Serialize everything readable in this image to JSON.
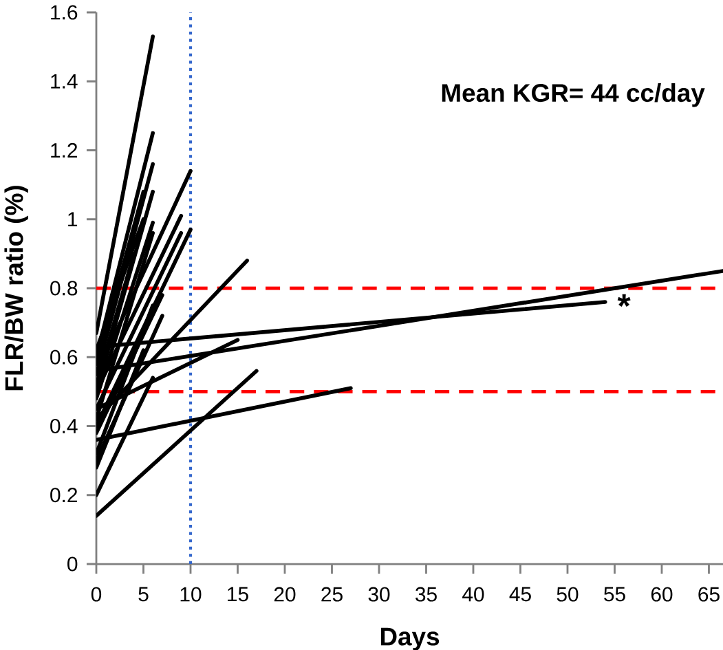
{
  "chart_data": {
    "type": "line",
    "xlabel": "Days",
    "ylabel": "FLR/BW ratio (%)",
    "xlim": [
      0,
      66.5
    ],
    "xticks": [
      0,
      5,
      10,
      15,
      20,
      25,
      30,
      35,
      40,
      45,
      50,
      55,
      60,
      65
    ],
    "ylim": [
      0,
      1.6
    ],
    "yticks": [
      0,
      0.2,
      0.4,
      0.6,
      0.8,
      1,
      1.2,
      1.4,
      1.6
    ],
    "marker": "none",
    "line_style": "solid",
    "grid": false,
    "ref_lines": [
      {
        "axis": "y",
        "value": 0.8,
        "color": "#ff0000",
        "line_style": "dashed"
      },
      {
        "axis": "y",
        "value": 0.5,
        "color": "#ff0000",
        "line_style": "dashed"
      },
      {
        "axis": "x",
        "value": 10,
        "color": "#3366cc",
        "line_style": "dotted"
      }
    ],
    "annotations": [
      "Mean KGR= 44 cc/day",
      "*"
    ],
    "series": [
      {
        "x": [
          0,
          54
        ],
        "values": [
          0.63,
          0.76
        ],
        "color": "#000000"
      },
      {
        "x": [
          0,
          66.5
        ],
        "values": [
          0.56,
          0.85
        ],
        "color": "#000000"
      },
      {
        "x": [
          0,
          27
        ],
        "values": [
          0.36,
          0.51
        ],
        "color": "#000000"
      },
      {
        "x": [
          0,
          17
        ],
        "values": [
          0.14,
          0.56
        ],
        "color": "#000000"
      },
      {
        "x": [
          0,
          6
        ],
        "values": [
          0.2,
          0.54
        ],
        "color": "#000000"
      },
      {
        "x": [
          0,
          15
        ],
        "values": [
          0.45,
          0.65
        ],
        "color": "#000000"
      },
      {
        "x": [
          0,
          16
        ],
        "values": [
          0.42,
          0.88
        ],
        "color": "#000000"
      },
      {
        "x": [
          0,
          10
        ],
        "values": [
          0.55,
          1.14
        ],
        "color": "#000000"
      },
      {
        "x": [
          0,
          9
        ],
        "values": [
          0.5,
          1.01
        ],
        "color": "#000000"
      },
      {
        "x": [
          0,
          10
        ],
        "values": [
          0.4,
          0.97
        ],
        "color": "#000000"
      },
      {
        "x": [
          0,
          9
        ],
        "values": [
          0.45,
          0.96
        ],
        "color": "#000000"
      },
      {
        "x": [
          0,
          6
        ],
        "values": [
          0.67,
          1.53
        ],
        "color": "#000000"
      },
      {
        "x": [
          0,
          6
        ],
        "values": [
          0.6,
          1.25
        ],
        "color": "#000000"
      },
      {
        "x": [
          0,
          6
        ],
        "values": [
          0.55,
          1.16
        ],
        "color": "#000000"
      },
      {
        "x": [
          0,
          6
        ],
        "values": [
          0.5,
          1.08
        ],
        "color": "#000000"
      },
      {
        "x": [
          0,
          6
        ],
        "values": [
          0.48,
          0.99
        ],
        "color": "#000000"
      },
      {
        "x": [
          0,
          6
        ],
        "values": [
          0.42,
          0.96
        ],
        "color": "#000000"
      },
      {
        "x": [
          0,
          5
        ],
        "values": [
          0.58,
          1.08
        ],
        "color": "#000000"
      },
      {
        "x": [
          0,
          7
        ],
        "values": [
          0.38,
          0.78
        ],
        "color": "#000000"
      },
      {
        "x": [
          0,
          6
        ],
        "values": [
          0.32,
          0.75
        ],
        "color": "#000000"
      },
      {
        "x": [
          0,
          7
        ],
        "values": [
          0.3,
          0.72
        ],
        "color": "#000000"
      },
      {
        "x": [
          0,
          5
        ],
        "values": [
          0.28,
          0.62
        ],
        "color": "#000000"
      },
      {
        "x": [
          0,
          5
        ],
        "values": [
          0.62,
          1.0
        ],
        "color": "#000000"
      },
      {
        "x": [
          0,
          4
        ],
        "values": [
          0.52,
          0.9
        ],
        "color": "#000000"
      }
    ]
  }
}
